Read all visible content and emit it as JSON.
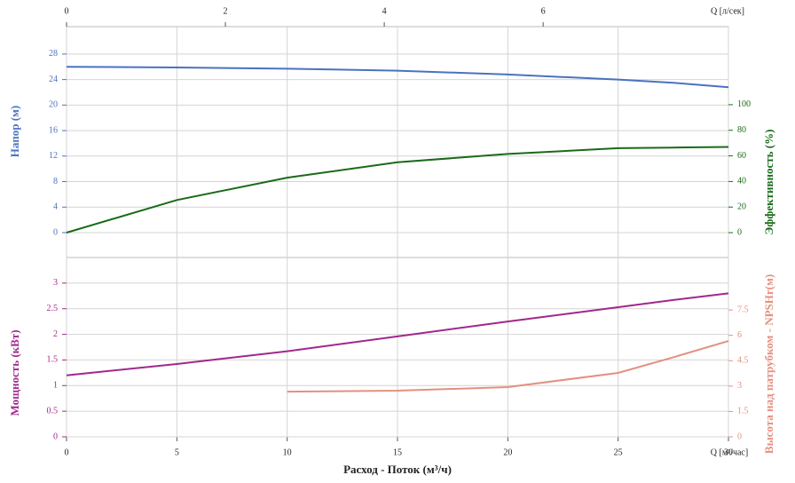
{
  "chart_data": [
    {
      "type": "line",
      "x": [
        0,
        5,
        10,
        15,
        20,
        25,
        27.5,
        30
      ],
      "xlim": [
        0,
        30
      ],
      "xticks": [
        0,
        5,
        10,
        15,
        20,
        25,
        30
      ],
      "x2lim": [
        0,
        8.333
      ],
      "x2ticks": [
        0,
        2,
        4,
        6
      ],
      "x2label": "Q [л/сек]",
      "ylabel": "Напор (м)",
      "ylim": [
        -3.9,
        32.3
      ],
      "yticks": [
        0,
        4,
        8,
        12,
        16,
        20,
        24,
        28
      ],
      "ycolor": "#4a72c0",
      "y2label": "Эффективность (%)",
      "y2lim": [
        -19.4,
        161
      ],
      "y2ticks": [
        0,
        20,
        40,
        60,
        80,
        100
      ],
      "y2color": "#1a6a1a",
      "grid": true,
      "series": [
        {
          "name": "Напор",
          "color": "#4a72c0",
          "values": [
            26.0,
            25.9,
            25.7,
            25.4,
            24.8,
            24.0,
            23.5,
            22.8
          ]
        },
        {
          "name": "Эффективность",
          "color": "#1a6a1a",
          "axis": "y2",
          "values": [
            0,
            25.5,
            43,
            55,
            61.5,
            66,
            66.5,
            67
          ]
        }
      ]
    },
    {
      "type": "line",
      "x": [
        0,
        5,
        10,
        15,
        20,
        25,
        27.5,
        30
      ],
      "xlim": [
        0,
        30
      ],
      "xticks": [
        0,
        5,
        10,
        15,
        20,
        25,
        30
      ],
      "xlabel": "Расход - Поток (м³/ч)",
      "xunit": "Q [м³/час]",
      "ylabel": "Мощность (кВт)",
      "ylim": [
        0,
        3.5
      ],
      "yticks": [
        0,
        0.5,
        1,
        1.5,
        2,
        2.5,
        3
      ],
      "ycolor": "#a0288c",
      "y2label": "Высота над патрубком - NPSHr(м)",
      "y2lim": [
        0,
        10.6
      ],
      "y2ticks": [
        0,
        1.5,
        3,
        4.5,
        6,
        7.5
      ],
      "y2color": "#e39080",
      "grid": true,
      "series": [
        {
          "name": "Мощность",
          "color": "#a0288c",
          "values": [
            1.2,
            1.42,
            1.67,
            1.96,
            2.25,
            2.53,
            2.67,
            2.8
          ]
        },
        {
          "name": "NPSHr",
          "color": "#e39080",
          "axis": "y2",
          "values": [
            null,
            null,
            2.67,
            2.73,
            2.94,
            3.78,
            4.7,
            5.66
          ]
        }
      ]
    }
  ]
}
